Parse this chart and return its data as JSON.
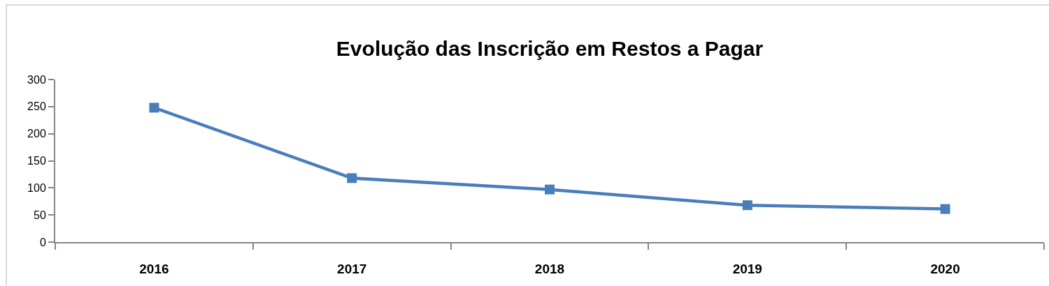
{
  "chart_data": {
    "type": "line",
    "title": "Evolução das Inscrição em Restos a Pagar",
    "categories": [
      "2016",
      "2017",
      "2018",
      "2019",
      "2020"
    ],
    "series": [
      {
        "color": "#4a7ebb",
        "values": [
          248,
          118,
          97,
          68,
          61
        ]
      }
    ],
    "ylim": [
      0,
      300
    ],
    "yticks": [
      0,
      50,
      100,
      150,
      200,
      250,
      300
    ],
    "marker": "square",
    "line_style": "solid"
  }
}
